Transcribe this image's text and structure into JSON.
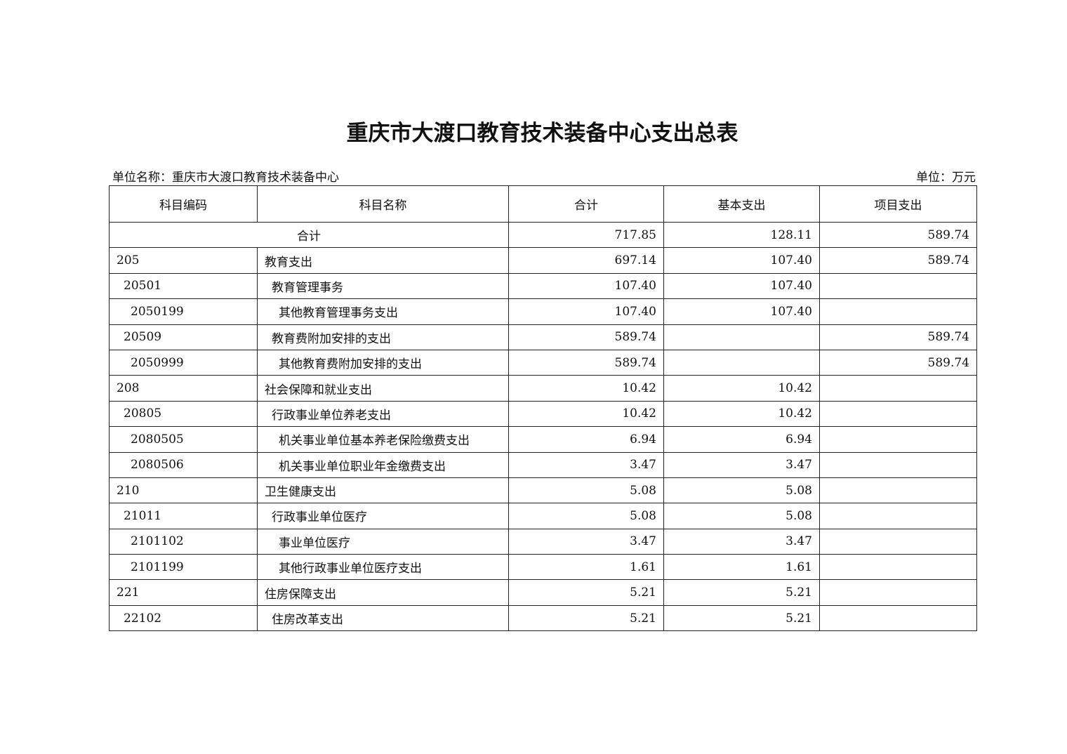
{
  "title": "重庆市大渡口教育技术装备中心支出总表",
  "unit_name": "单位名称：重庆市大渡口教育技术装备中心",
  "unit": "单位：万元",
  "table": {
    "headers": [
      "科目编码",
      "科目名称",
      "合计",
      "基本支出",
      "项目支出"
    ],
    "total": {
      "label": "合计",
      "total": "717.85",
      "basic": "128.11",
      "project": "589.74"
    },
    "rows": [
      {
        "code": "205",
        "name": "教育支出",
        "level": 1,
        "total": "697.14",
        "basic": "107.40",
        "project": "589.74"
      },
      {
        "code": "20501",
        "name": "教育管理事务",
        "level": 2,
        "total": "107.40",
        "basic": "107.40",
        "project": ""
      },
      {
        "code": "2050199",
        "name": "其他教育管理事务支出",
        "level": 3,
        "total": "107.40",
        "basic": "107.40",
        "project": ""
      },
      {
        "code": "20509",
        "name": "教育费附加安排的支出",
        "level": 2,
        "total": "589.74",
        "basic": "",
        "project": "589.74"
      },
      {
        "code": "2050999",
        "name": "其他教育费附加安排的支出",
        "level": 3,
        "total": "589.74",
        "basic": "",
        "project": "589.74"
      },
      {
        "code": "208",
        "name": "社会保障和就业支出",
        "level": 1,
        "total": "10.42",
        "basic": "10.42",
        "project": ""
      },
      {
        "code": "20805",
        "name": "行政事业单位养老支出",
        "level": 2,
        "total": "10.42",
        "basic": "10.42",
        "project": ""
      },
      {
        "code": "2080505",
        "name": "机关事业单位基本养老保险缴费支出",
        "level": 3,
        "total": "6.94",
        "basic": "6.94",
        "project": ""
      },
      {
        "code": "2080506",
        "name": "机关事业单位职业年金缴费支出",
        "level": 3,
        "total": "3.47",
        "basic": "3.47",
        "project": ""
      },
      {
        "code": "210",
        "name": "卫生健康支出",
        "level": 1,
        "total": "5.08",
        "basic": "5.08",
        "project": ""
      },
      {
        "code": "21011",
        "name": "行政事业单位医疗",
        "level": 2,
        "total": "5.08",
        "basic": "5.08",
        "project": ""
      },
      {
        "code": "2101102",
        "name": "事业单位医疗",
        "level": 3,
        "total": "3.47",
        "basic": "3.47",
        "project": ""
      },
      {
        "code": "2101199",
        "name": "其他行政事业单位医疗支出",
        "level": 3,
        "total": "1.61",
        "basic": "1.61",
        "project": ""
      },
      {
        "code": "221",
        "name": "住房保障支出",
        "level": 1,
        "total": "5.21",
        "basic": "5.21",
        "project": ""
      },
      {
        "code": "22102",
        "name": "住房改革支出",
        "level": 2,
        "total": "5.21",
        "basic": "5.21",
        "project": ""
      }
    ]
  }
}
